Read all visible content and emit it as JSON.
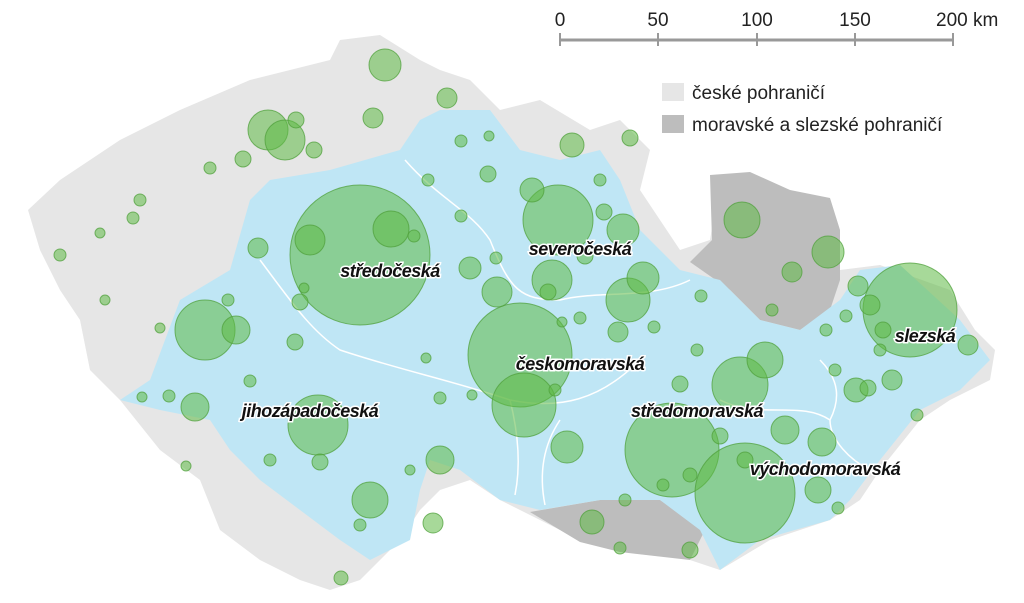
{
  "scale": {
    "labels": [
      "0",
      "50",
      "100",
      "150",
      "200 km"
    ]
  },
  "legend": [
    {
      "label": "české pohraničí"
    },
    {
      "label": "moravské a slezské pohraničí"
    }
  ],
  "regions": [
    {
      "label": "středočeská"
    },
    {
      "label": "severočeská"
    },
    {
      "label": "českomoravská"
    },
    {
      "label": "jihozápadočeská"
    },
    {
      "label": "středomoravská"
    },
    {
      "label": "slezská"
    },
    {
      "label": "východomoravská"
    }
  ]
}
